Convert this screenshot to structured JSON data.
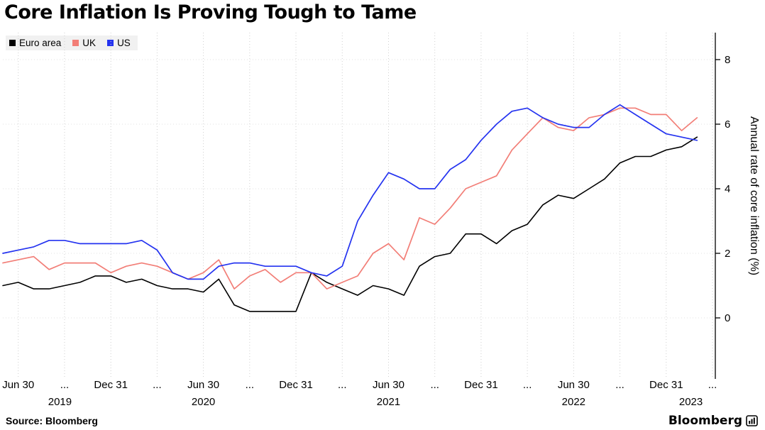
{
  "title": "Core Inflation Is Proving Tough to Tame",
  "legend": {
    "items": [
      {
        "label": "Euro area",
        "color": "#000000"
      },
      {
        "label": "UK",
        "color": "#f27e77"
      },
      {
        "label": "US",
        "color": "#2433f0"
      }
    ]
  },
  "footer": {
    "source": "Source: Bloomberg",
    "brand": "Bloomberg"
  },
  "chart_data": {
    "type": "line",
    "title": "Core Inflation Is Proving Tough to Tame",
    "ylabel": "Annual rate of core inflation (%)",
    "x_unit": "monthly, May 2019 to Feb 2023",
    "ylim": [
      0,
      8
    ],
    "xlim": [
      0,
      46
    ],
    "yticks": [
      0,
      2,
      4,
      6,
      8
    ],
    "grid": "dotted",
    "legend_position": "top-left",
    "xticks": [
      {
        "i": 1,
        "label": "Jun 30"
      },
      {
        "i": 4,
        "label": "..."
      },
      {
        "i": 7,
        "label": "Dec 31"
      },
      {
        "i": 10,
        "label": "..."
      },
      {
        "i": 13,
        "label": "Jun 30"
      },
      {
        "i": 16,
        "label": "..."
      },
      {
        "i": 19,
        "label": "Dec 31"
      },
      {
        "i": 22,
        "label": "..."
      },
      {
        "i": 25,
        "label": "Jun 30"
      },
      {
        "i": 28,
        "label": "..."
      },
      {
        "i": 31,
        "label": "Dec 31"
      },
      {
        "i": 34,
        "label": "..."
      },
      {
        "i": 37,
        "label": "Jun 30"
      },
      {
        "i": 40,
        "label": "..."
      },
      {
        "i": 43,
        "label": "Dec 31"
      },
      {
        "i": 46,
        "label": "..."
      }
    ],
    "year_labels": [
      {
        "i": 3.7,
        "label": "2019"
      },
      {
        "i": 13,
        "label": "2020"
      },
      {
        "i": 25,
        "label": "2021"
      },
      {
        "i": 37,
        "label": "2022"
      },
      {
        "i": 44.6,
        "label": "2023"
      }
    ],
    "series": [
      {
        "name": "Euro area",
        "color": "#000000",
        "width": 1.6,
        "values": [
          1.0,
          1.1,
          0.9,
          0.9,
          1.0,
          1.1,
          1.3,
          1.3,
          1.1,
          1.2,
          1.0,
          0.9,
          0.9,
          0.8,
          1.2,
          0.4,
          0.2,
          0.2,
          0.2,
          0.2,
          1.4,
          1.1,
          0.9,
          0.7,
          1.0,
          0.9,
          0.7,
          1.6,
          1.9,
          2.0,
          2.6,
          2.6,
          2.3,
          2.7,
          2.9,
          3.5,
          3.8,
          3.7,
          4.0,
          4.3,
          4.8,
          5.0,
          5.0,
          5.2,
          5.3,
          5.6
        ]
      },
      {
        "name": "UK",
        "color": "#f27e77",
        "width": 1.7,
        "values": [
          1.7,
          1.8,
          1.9,
          1.5,
          1.7,
          1.7,
          1.7,
          1.4,
          1.6,
          1.7,
          1.6,
          1.4,
          1.2,
          1.4,
          1.8,
          0.9,
          1.3,
          1.5,
          1.1,
          1.4,
          1.4,
          0.9,
          1.1,
          1.3,
          2.0,
          2.3,
          1.8,
          3.1,
          2.9,
          3.4,
          4.0,
          4.2,
          4.4,
          5.2,
          5.7,
          6.2,
          5.9,
          5.8,
          6.2,
          6.3,
          6.5,
          6.5,
          6.3,
          6.3,
          5.8,
          6.2
        ]
      },
      {
        "name": "US",
        "color": "#2433f0",
        "width": 1.7,
        "values": [
          2.0,
          2.1,
          2.2,
          2.4,
          2.4,
          2.3,
          2.3,
          2.3,
          2.3,
          2.4,
          2.1,
          1.4,
          1.2,
          1.2,
          1.6,
          1.7,
          1.7,
          1.6,
          1.6,
          1.6,
          1.4,
          1.3,
          1.6,
          3.0,
          3.8,
          4.5,
          4.3,
          4.0,
          4.0,
          4.6,
          4.9,
          5.5,
          6.0,
          6.4,
          6.5,
          6.2,
          6.0,
          5.9,
          5.9,
          6.3,
          6.6,
          6.3,
          6.0,
          5.7,
          5.6,
          5.5
        ]
      }
    ]
  }
}
